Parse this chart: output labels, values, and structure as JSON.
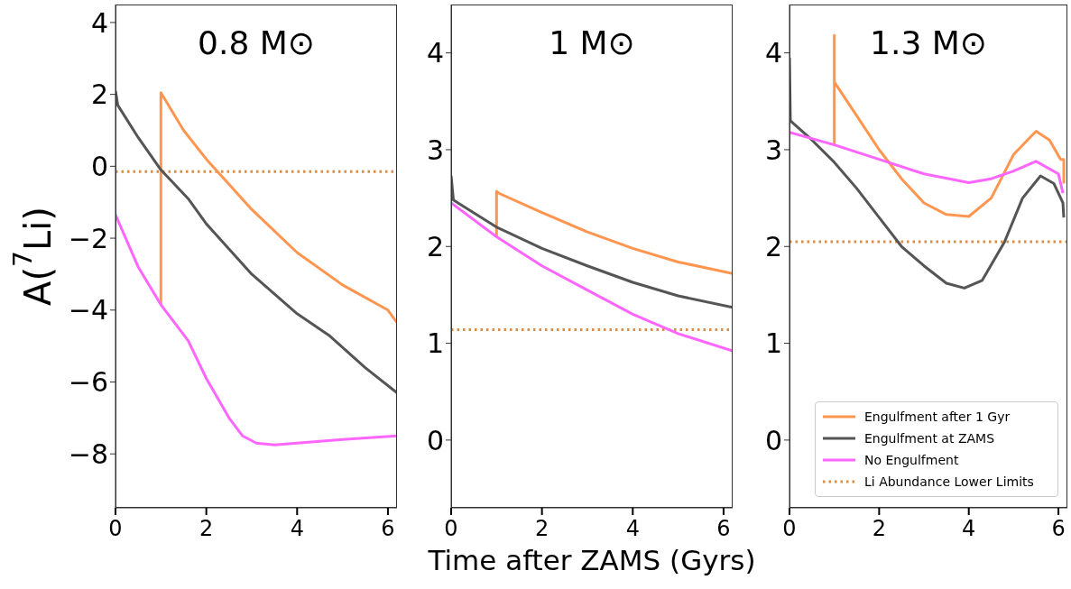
{
  "chart_data": [
    {
      "type": "line",
      "title": "0.8 M⊙",
      "ylabel": "A($^{7}$Li)",
      "xlim": [
        0,
        6.2
      ],
      "xticks": [
        0,
        2,
        4,
        6
      ],
      "ylim": [
        -9.5,
        4.5
      ],
      "yticks": [
        -8,
        -6,
        -4,
        -2,
        0,
        2,
        4
      ],
      "line_style": "solid",
      "marker": "none",
      "series": [
        {
          "color": "#ff9650",
          "x": [
            1,
            1,
            1.5,
            2,
            2.5,
            3,
            4,
            5,
            6,
            6.2
          ],
          "values": [
            -3.85,
            2.05,
            1.0,
            0.2,
            -0.5,
            -1.2,
            -2.4,
            -3.3,
            -4.0,
            -4.35
          ]
        },
        {
          "color": "#555555",
          "x": [
            0,
            0.05,
            0.5,
            1,
            1.6,
            2,
            3,
            4,
            4.7,
            5.5,
            6.2
          ],
          "values": [
            2.1,
            1.7,
            0.8,
            -0.1,
            -0.9,
            -1.6,
            -3.0,
            -4.1,
            -4.7,
            -5.6,
            -6.3
          ]
        },
        {
          "color": "#ff66ff",
          "x": [
            0,
            0.5,
            1,
            1.6,
            2,
            2.5,
            2.8,
            3.1,
            3.5,
            4,
            5,
            6.2
          ],
          "values": [
            -1.35,
            -2.8,
            -3.85,
            -4.85,
            -5.9,
            -7.0,
            -7.5,
            -7.7,
            -7.75,
            -7.7,
            -7.6,
            -7.5
          ]
        }
      ],
      "ref_lines": [
        {
          "axis": "y",
          "value": -0.15,
          "color": "#d98c45",
          "line_style": "dotted"
        }
      ]
    },
    {
      "type": "line",
      "title": "1 M⊙",
      "xlabel": "Time after ZAMS (Gyrs)",
      "xlim": [
        0,
        6.2
      ],
      "xticks": [
        0,
        2,
        4,
        6
      ],
      "ylim": [
        -0.7,
        4.5
      ],
      "yticks": [
        0,
        1,
        2,
        3,
        4
      ],
      "line_style": "solid",
      "marker": "none",
      "series": [
        {
          "color": "#ff9650",
          "x": [
            1,
            1,
            1.05,
            2,
            3,
            4,
            5,
            6.2
          ],
          "values": [
            2.1,
            2.57,
            2.55,
            2.35,
            2.15,
            1.98,
            1.84,
            1.72
          ]
        },
        {
          "color": "#555555",
          "x": [
            0,
            0.05,
            1,
            2,
            3,
            4,
            5,
            6.2
          ],
          "values": [
            2.73,
            2.48,
            2.2,
            1.98,
            1.8,
            1.63,
            1.49,
            1.37
          ]
        },
        {
          "color": "#ff66ff",
          "x": [
            0,
            1,
            2,
            3,
            4,
            5,
            6.2
          ],
          "values": [
            2.45,
            2.1,
            1.8,
            1.55,
            1.3,
            1.1,
            0.92
          ]
        }
      ],
      "ref_lines": [
        {
          "axis": "y",
          "value": 1.14,
          "color": "#d98c45",
          "line_style": "dotted"
        }
      ]
    },
    {
      "type": "line",
      "title": "1.3 M⊙",
      "xlim": [
        0,
        6.2
      ],
      "xticks": [
        0,
        2,
        4,
        6
      ],
      "ylim": [
        -0.7,
        4.5
      ],
      "yticks": [
        0,
        1,
        2,
        3,
        4
      ],
      "line_style": "solid",
      "marker": "none",
      "legend": "bottom right",
      "series": [
        {
          "name": "Engulfment after 1 Gyr",
          "color": "#ff9650",
          "x": [
            1,
            1,
            1,
            1.5,
            2,
            2.5,
            3,
            3.5,
            4,
            4.5,
            5,
            5.5,
            5.8,
            6.05,
            6.12,
            6.12
          ],
          "values": [
            3.05,
            4.18,
            3.7,
            3.35,
            3.0,
            2.7,
            2.45,
            2.33,
            2.31,
            2.5,
            2.95,
            3.19,
            3.1,
            2.9,
            2.9,
            2.65
          ]
        },
        {
          "name": "Engulfment at ZAMS",
          "color": "#555555",
          "x": [
            0,
            0.02,
            0.5,
            1,
            1.5,
            2,
            2.5,
            3,
            3.5,
            3.9,
            4.3,
            4.8,
            5.2,
            5.6,
            5.9,
            6.1,
            6.12
          ],
          "values": [
            3.95,
            3.3,
            3.1,
            2.87,
            2.6,
            2.3,
            2.0,
            1.8,
            1.62,
            1.57,
            1.65,
            2.05,
            2.5,
            2.73,
            2.65,
            2.45,
            2.3
          ]
        },
        {
          "name": "No Engulfment",
          "color": "#ff66ff",
          "x": [
            0,
            1,
            2,
            3,
            4,
            4.5,
            5,
            5.5,
            6,
            6.1
          ],
          "values": [
            3.18,
            3.05,
            2.9,
            2.75,
            2.66,
            2.7,
            2.78,
            2.88,
            2.75,
            2.55
          ]
        }
      ],
      "ref_lines": [
        {
          "axis": "y",
          "value": 2.05,
          "label": "Li Abundance Lower Limits",
          "color": "#d98c45",
          "line_style": "dotted"
        }
      ]
    }
  ]
}
